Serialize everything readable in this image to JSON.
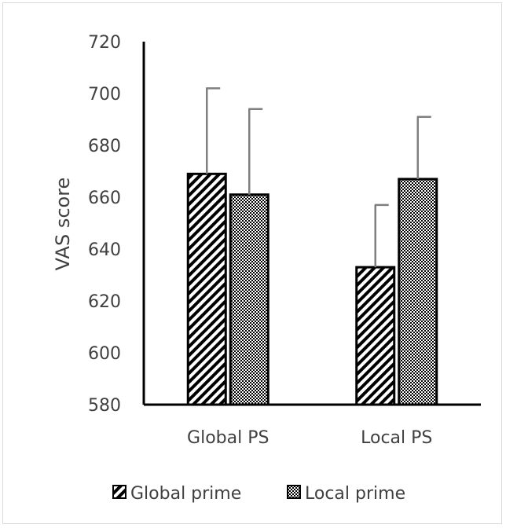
{
  "chart_data": {
    "type": "bar",
    "categories": [
      "Global PS",
      "Local PS"
    ],
    "series": [
      {
        "name": "Global prime",
        "values": [
          669,
          633
        ],
        "errors": [
          33,
          24
        ],
        "pattern": "diagonal-stripes"
      },
      {
        "name": "Local prime",
        "values": [
          661,
          667
        ],
        "errors": [
          33,
          24
        ],
        "pattern": "checker"
      }
    ],
    "title": "",
    "xlabel": "",
    "ylabel": "VAS score",
    "ylim": [
      580,
      720
    ],
    "yticks": [
      "580",
      "600",
      "620",
      "640",
      "660",
      "680",
      "700",
      "720"
    ],
    "grid": false,
    "legend_position": "bottom",
    "colors": {
      "bar_outline": "#000000",
      "axis": "#000000",
      "error_bar": "#7f7f7f",
      "text": "#404040",
      "border": "#d9d9d9"
    }
  }
}
